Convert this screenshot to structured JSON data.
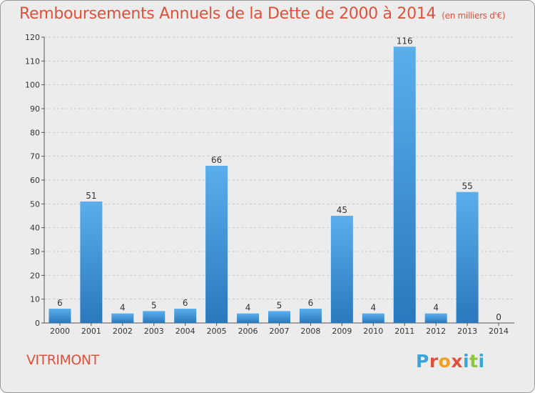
{
  "chart_data": {
    "type": "bar",
    "title": "Remboursements Annuels de la Dette de 2000 à 2014",
    "unit": "(en milliers d'€)",
    "categories": [
      "2000",
      "2001",
      "2002",
      "2003",
      "2004",
      "2005",
      "2006",
      "2007",
      "2008",
      "2009",
      "2010",
      "2011",
      "2012",
      "2013",
      "2014"
    ],
    "values": [
      6,
      51,
      4,
      5,
      6,
      66,
      4,
      5,
      6,
      45,
      4,
      116,
      4,
      55,
      0
    ],
    "ylim": [
      0,
      120
    ],
    "yticks": [
      0,
      10,
      20,
      30,
      40,
      50,
      60,
      70,
      80,
      90,
      100,
      110,
      120
    ],
    "grid": true,
    "bar_color": "#3a8fd6"
  },
  "location": "VITRIMONT",
  "logo": [
    "P",
    "r",
    "o",
    "x",
    "i",
    "t",
    "i"
  ],
  "colors": {
    "title": "#e0503a",
    "logo": [
      "#3aa5d8",
      "#e0503a",
      "#f0a020",
      "#e0503a",
      "#3aa5d8",
      "#8cc63e",
      "#3aa5d8"
    ]
  }
}
